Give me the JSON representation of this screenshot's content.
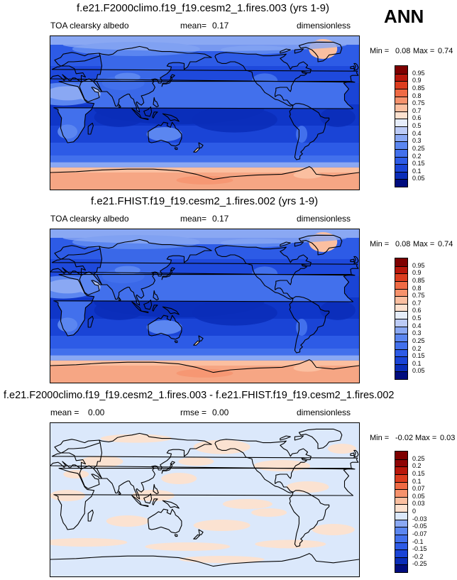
{
  "season": "ANN",
  "panels": [
    {
      "title": "f.e21.F2000climo.f19_f19.cesm2_1.fires.003 (yrs 1-9)",
      "left_label": "TOA clearsky albedo",
      "stat1_label": "mean=",
      "stat1_value": "0.17",
      "stat2_label": "",
      "stat2_value": "",
      "units": "dimensionless",
      "min_label": "Min =",
      "min_value": "0.08",
      "max_label": "Max =",
      "max_value": "0.74",
      "scheme": "abs"
    },
    {
      "title": "f.e21.FHIST.f19_f19.cesm2_1.fires.002 (yrs 1-9)",
      "left_label": "TOA clearsky albedo",
      "stat1_label": "mean=",
      "stat1_value": "0.17",
      "stat2_label": "",
      "stat2_value": "",
      "units": "dimensionless",
      "min_label": "Min =",
      "min_value": "0.08",
      "max_label": "Max =",
      "max_value": "0.74",
      "scheme": "abs"
    },
    {
      "title": "f.e21.F2000climo.f19_f19.cesm2_1.fires.003 - f.e21.FHIST.f19_f19.cesm2_1.fires.002",
      "left_label": "mean =",
      "left_value": "0.00",
      "stat2_label": "rmse =",
      "stat2_value": "0.00",
      "units": "dimensionless",
      "min_label": "Min =",
      "min_value": "-0.02",
      "max_label": "Max =",
      "max_value": "0.03",
      "scheme": "diff"
    }
  ],
  "chart_data": [
    {
      "type": "heatmap",
      "title": "f.e21.F2000climo.f19_f19.cesm2_1.fires.003 (yrs 1-9)",
      "variable": "TOA clearsky albedo",
      "units": "dimensionless",
      "mean": 0.17,
      "min": 0.08,
      "max": 0.74,
      "colorbar_levels": [
        "0.05",
        "0.1",
        "0.15",
        "0.2",
        "0.25",
        "0.3",
        "0.4",
        "0.5",
        "0.6",
        "0.7",
        "0.75",
        "0.8",
        "0.85",
        "0.9",
        "0.95"
      ],
      "colorbar_colors": [
        "#000c7e",
        "#0a2db8",
        "#1a44d6",
        "#2d5be6",
        "#4270ec",
        "#5b86f0",
        "#8aa8f3",
        "#bccbf6",
        "#e6edfa",
        "#fde1cf",
        "#fbbfa0",
        "#f6926c",
        "#ef6a44",
        "#dc3d1f",
        "#b8170b",
        "#7e0000"
      ]
    },
    {
      "type": "heatmap",
      "title": "f.e21.FHIST.f19_f19.cesm2_1.fires.002 (yrs 1-9)",
      "variable": "TOA clearsky albedo",
      "units": "dimensionless",
      "mean": 0.17,
      "min": 0.08,
      "max": 0.74,
      "colorbar_levels": [
        "0.05",
        "0.1",
        "0.15",
        "0.2",
        "0.25",
        "0.3",
        "0.4",
        "0.5",
        "0.6",
        "0.7",
        "0.75",
        "0.8",
        "0.85",
        "0.9",
        "0.95"
      ],
      "colorbar_colors": [
        "#000c7e",
        "#0a2db8",
        "#1a44d6",
        "#2d5be6",
        "#4270ec",
        "#5b86f0",
        "#8aa8f3",
        "#bccbf6",
        "#e6edfa",
        "#fde1cf",
        "#fbbfa0",
        "#f6926c",
        "#ef6a44",
        "#dc3d1f",
        "#b8170b",
        "#7e0000"
      ]
    },
    {
      "type": "heatmap",
      "title": "f.e21.F2000climo.f19_f19.cesm2_1.fires.003 - f.e21.FHIST.f19_f19.cesm2_1.fires.002",
      "variable": "TOA clearsky albedo difference",
      "units": "dimensionless",
      "mean": 0.0,
      "rmse": 0.0,
      "min": -0.02,
      "max": 0.03,
      "colorbar_levels": [
        "-0.25",
        "-0.2",
        "-0.15",
        "-0.1",
        "-0.07",
        "-0.05",
        "-0.03",
        "0",
        "0.03",
        "0.05",
        "0.07",
        "0.1",
        "0.15",
        "0.2",
        "0.25"
      ],
      "colorbar_colors": [
        "#000c7e",
        "#0a2db8",
        "#1a44d6",
        "#2d5be6",
        "#4270ec",
        "#5b86f0",
        "#8aa8f3",
        "#dbe8fb",
        "#fde1cf",
        "#fbbfa0",
        "#f6926c",
        "#ef6a44",
        "#dc3d1f",
        "#b8170b",
        "#8e0405",
        "#7e0000"
      ]
    }
  ]
}
